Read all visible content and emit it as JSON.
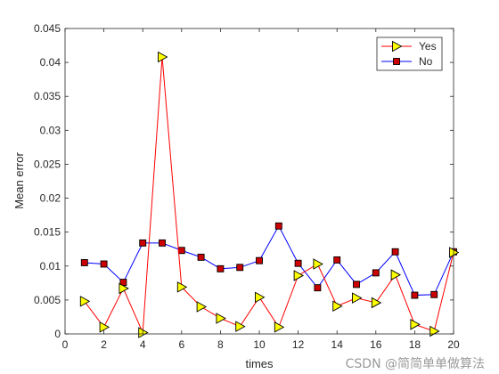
{
  "chart_data": {
    "type": "line",
    "xlabel": "times",
    "ylabel": "Mean error",
    "xlim": [
      0,
      20
    ],
    "ylim": [
      0,
      0.045
    ],
    "xticks": [
      0,
      2,
      4,
      6,
      8,
      10,
      12,
      14,
      16,
      18,
      20
    ],
    "yticks": [
      0,
      0.005,
      0.01,
      0.015,
      0.02,
      0.025,
      0.03,
      0.035,
      0.04,
      0.045
    ],
    "ytick_labels": [
      "0",
      "0.005",
      "0.01",
      "0.015",
      "0.02",
      "0.025",
      "0.03",
      "0.035",
      "0.04",
      "0.045"
    ],
    "grid": false,
    "legend_position": "top-right",
    "x": [
      1,
      2,
      3,
      4,
      5,
      6,
      7,
      8,
      9,
      10,
      11,
      12,
      13,
      14,
      15,
      16,
      17,
      18,
      19,
      20
    ],
    "series": [
      {
        "name": "Yes",
        "color": "#ff0000",
        "marker": "triangle-right",
        "marker_fill": "#ffff00",
        "values": [
          0.0048,
          0.001,
          0.0067,
          0.0002,
          0.0408,
          0.0069,
          0.004,
          0.0023,
          0.0011,
          0.0054,
          0.001,
          0.0086,
          0.0103,
          0.0041,
          0.0053,
          0.0046,
          0.0087,
          0.0014,
          0.0004,
          0.012
        ]
      },
      {
        "name": "No",
        "color": "#0000ff",
        "marker": "square",
        "marker_fill": "#cc0000",
        "values": [
          0.0105,
          0.0103,
          0.0076,
          0.0134,
          0.0134,
          0.0123,
          0.0113,
          0.0096,
          0.0098,
          0.0108,
          0.0159,
          0.0104,
          0.0068,
          0.0109,
          0.0073,
          0.009,
          0.0121,
          0.0057,
          0.0058,
          0.0121
        ]
      }
    ]
  },
  "watermark": "CSDN @简简单单做算法"
}
